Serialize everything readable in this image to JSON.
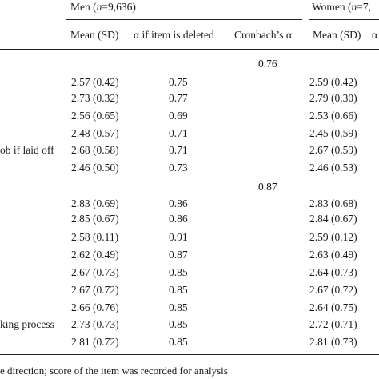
{
  "header": {
    "group_men_prefix": "Men (",
    "group_men_n_symbol": "n",
    "group_men_n_value": "=9,636)",
    "group_women_prefix": "Women (",
    "group_women_n_symbol": "n",
    "group_women_n_value": "=7,",
    "col_mean_sd": "Mean (SD)",
    "col_alpha_deleted": "α if item is deleted",
    "col_cronbach": "Cronbach’s α",
    "col_mean_sd_women": "Mean (SD)",
    "col_alpha_women_partial": "α"
  },
  "section1_cronbach": "0.76",
  "section2_cronbach": "0.87",
  "rows_section1": [
    {
      "label": "",
      "mean_sd_men": "2.57 (0.42)",
      "alpha_men": "0.75",
      "mean_sd_women": "2.59 (0.42)"
    },
    {
      "label": "",
      "mean_sd_men": "2.73 (0.32)",
      "alpha_men": "0.77",
      "mean_sd_women": "2.79 (0.30)"
    },
    {
      "label": "",
      "mean_sd_men": "2.56 (0.65)",
      "alpha_men": "0.69",
      "mean_sd_women": "2.53 (0.66)"
    },
    {
      "label": "",
      "mean_sd_men": "2.48 (0.57)",
      "alpha_men": "0.71",
      "mean_sd_women": "2.45 (0.59)"
    },
    {
      "label": "ob if laid off",
      "mean_sd_men": "2.68 (0.58)",
      "alpha_men": "0.71",
      "mean_sd_women": "2.67 (0.59)"
    },
    {
      "label": "",
      "mean_sd_men": "2.46 (0.50)",
      "alpha_men": "0.73",
      "mean_sd_women": "2.46 (0.53)"
    }
  ],
  "rows_section2": [
    {
      "label": "",
      "mean_sd_men": "2.83 (0.69)",
      "alpha_men": "0.86",
      "mean_sd_women": "2.83 (0.68)"
    },
    {
      "label": "",
      "mean_sd_men": "2.85 (0.67)",
      "alpha_men": "0.86",
      "mean_sd_women": "2.84 (0.67)"
    },
    {
      "label": "",
      "mean_sd_men": "2.58 (0.11)",
      "alpha_men": "0.91",
      "mean_sd_women": "2.59 (0.12)"
    },
    {
      "label": "",
      "mean_sd_men": "2.62 (0.49)",
      "alpha_men": "0.87",
      "mean_sd_women": "2.63 (0.49)"
    },
    {
      "label": "",
      "mean_sd_men": "2.67 (0.73)",
      "alpha_men": "0.85",
      "mean_sd_women": "2.64 (0.73)"
    },
    {
      "label": "",
      "mean_sd_men": "2.67 (0.72)",
      "alpha_men": "0.85",
      "mean_sd_women": "2.67 (0.72)"
    },
    {
      "label": "",
      "mean_sd_men": "2.66 (0.76)",
      "alpha_men": "0.85",
      "mean_sd_women": "2.64 (0.75)"
    },
    {
      "label": "king process",
      "mean_sd_men": "2.73 (0.73)",
      "alpha_men": "0.85",
      "mean_sd_women": "2.72 (0.71)"
    },
    {
      "label": "",
      "mean_sd_men": "2.81 (0.72)",
      "alpha_men": "0.85",
      "mean_sd_women": "2.81 (0.73)"
    }
  ],
  "footnote": "e direction; score of the item was recorded for analysis"
}
